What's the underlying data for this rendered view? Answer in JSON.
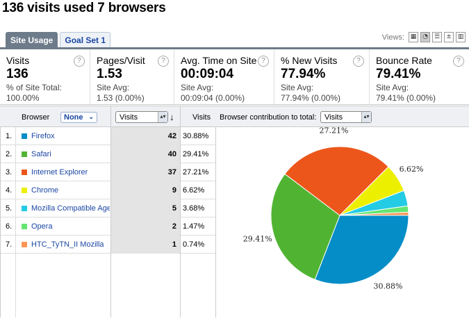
{
  "page": {
    "title": "136 visits used 7 browsers"
  },
  "tabs": [
    {
      "label": "Site Usage",
      "active": true
    },
    {
      "label": "Goal Set 1",
      "active": false
    }
  ],
  "views": {
    "label": "Views:",
    "icons": [
      "table-view-icon",
      "pie-view-icon",
      "bar-view-icon",
      "comparison-view-icon",
      "pivot-view-icon"
    ]
  },
  "summary": [
    {
      "label": "Visits",
      "value": "136",
      "sub1": "% of Site Total:",
      "sub2": "100.00%"
    },
    {
      "label": "Pages/Visit",
      "value": "1.53",
      "sub1": "Site Avg:",
      "sub2": "1.53 (0.00%)"
    },
    {
      "label": "Avg. Time on Site",
      "value": "00:09:04",
      "sub1": "Site Avg:",
      "sub2": "00:09:04 (0.00%)"
    },
    {
      "label": "% New Visits",
      "value": "77.94%",
      "sub1": "Site Avg:",
      "sub2": "77.94% (0.00%)"
    },
    {
      "label": "Bounce Rate",
      "value": "79.41%",
      "sub1": "Site Avg:",
      "sub2": "79.41% (0.00%)"
    }
  ],
  "table": {
    "browser_header": "Browser",
    "none_label": "None",
    "metric_select": "Visits",
    "visits_header": "Visits",
    "contribution_label": "Browser contribution to total:",
    "contribution_select": "Visits",
    "rows": [
      {
        "num": "1.",
        "name": "Firefox",
        "visits": "42",
        "pct": "30.88%",
        "color": "#058dc7"
      },
      {
        "num": "2.",
        "name": "Safari",
        "visits": "40",
        "pct": "29.41%",
        "color": "#50b432"
      },
      {
        "num": "3.",
        "name": "Internet Explorer",
        "visits": "37",
        "pct": "27.21%",
        "color": "#ed561b"
      },
      {
        "num": "4.",
        "name": "Chrome",
        "visits": "9",
        "pct": "6.62%",
        "color": "#edef00"
      },
      {
        "num": "5.",
        "name": "Mozilla Compatible Age",
        "visits": "5",
        "pct": "3.68%",
        "color": "#24cbe5"
      },
      {
        "num": "6.",
        "name": "Opera",
        "visits": "2",
        "pct": "1.47%",
        "color": "#64e572"
      },
      {
        "num": "7.",
        "name": "HTC_TyTN_II Mozilla",
        "visits": "1",
        "pct": "0.74%",
        "color": "#ff9655"
      }
    ]
  },
  "chart_data": {
    "type": "pie",
    "categories": [
      "Firefox",
      "Safari",
      "Internet Explorer",
      "Chrome",
      "Mozilla Compatible Age",
      "Opera",
      "HTC_TyTN_II Mozilla"
    ],
    "values": [
      42,
      40,
      37,
      9,
      5,
      2,
      1
    ],
    "labels": [
      "30.88%",
      "29.41%",
      "27.21%",
      "6.62%",
      "",
      "",
      ""
    ],
    "colors": [
      "#058dc7",
      "#50b432",
      "#ed561b",
      "#edef00",
      "#24cbe5",
      "#64e572",
      "#ff9655"
    ]
  }
}
